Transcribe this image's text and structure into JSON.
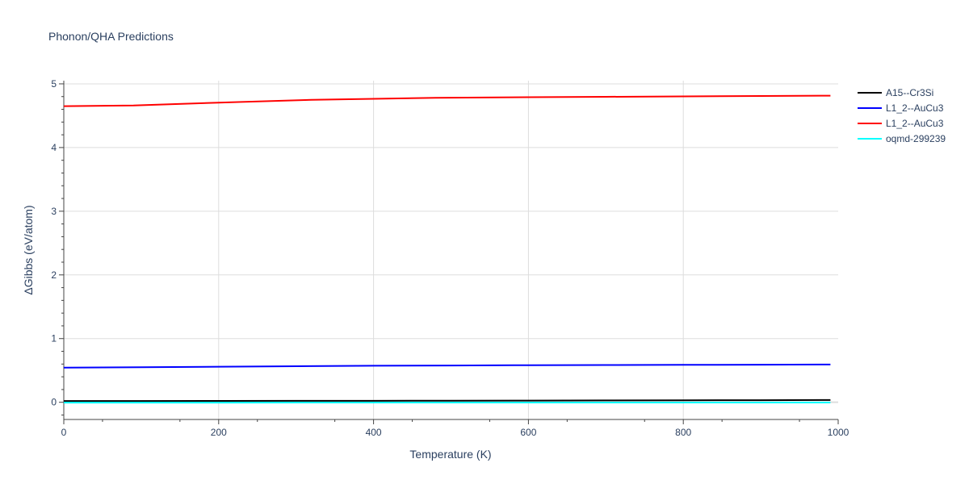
{
  "chart_data": {
    "type": "line",
    "title": "Phonon/QHA Predictions",
    "xlabel": "Temperature (K)",
    "ylabel": "ΔGibbs (eV/atom)",
    "xlim": [
      0,
      1000
    ],
    "ylim": [
      -0.27,
      5.05
    ],
    "xticks": [
      0,
      200,
      400,
      600,
      800,
      1000
    ],
    "yticks": [
      0,
      1,
      2,
      3,
      4,
      5
    ],
    "xtick_labels": [
      "0",
      "200",
      "400",
      "600",
      "800",
      "1000"
    ],
    "ytick_labels": [
      "0",
      "1",
      "2",
      "3",
      "4",
      "5"
    ],
    "grid": true,
    "legend_position": "top-right",
    "series": [
      {
        "name": "A15--Cr3Si",
        "color": "#000000",
        "x": [
          0,
          100,
          200,
          300,
          400,
          500,
          600,
          700,
          800,
          900,
          990
        ],
        "y": [
          0.02,
          0.02,
          0.021,
          0.022,
          0.023,
          0.025,
          0.027,
          0.029,
          0.031,
          0.033,
          0.035
        ]
      },
      {
        "name": "L1_2--AuCu3",
        "color": "#0000ff",
        "x": [
          0,
          100,
          200,
          300,
          400,
          500,
          600,
          700,
          800,
          900,
          990
        ],
        "y": [
          0.545,
          0.55,
          0.558,
          0.566,
          0.573,
          0.578,
          0.582,
          0.585,
          0.588,
          0.59,
          0.592
        ]
      },
      {
        "name": "L1_2--AuCu3",
        "color": "#ff0000",
        "x": [
          0,
          90,
          200,
          320,
          480,
          600,
          700,
          800,
          900,
          990
        ],
        "y": [
          4.65,
          4.66,
          4.705,
          4.75,
          4.78,
          4.79,
          4.797,
          4.803,
          4.809,
          4.815
        ]
      },
      {
        "name": "oqmd-299239",
        "color": "#00ffff",
        "x": [
          0,
          200,
          400,
          600,
          800,
          990
        ],
        "y": [
          -0.005,
          -0.005,
          -0.004,
          -0.004,
          -0.004,
          -0.004
        ]
      }
    ]
  }
}
